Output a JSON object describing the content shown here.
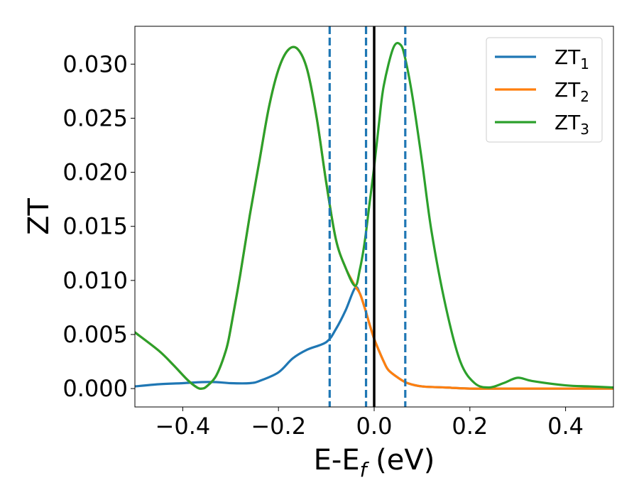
{
  "chart_data": {
    "type": "line",
    "title": "",
    "xlabel": "E-E",
    "xlabel_sub": "f",
    "xlabel_unit": " (eV)",
    "ylabel": "ZT",
    "xlim": [
      -0.5,
      0.5
    ],
    "ylim": [
      -0.0017,
      0.0335
    ],
    "xticks": [
      -0.4,
      -0.2,
      0.0,
      0.2,
      0.4
    ],
    "xtick_labels": [
      "−0.4",
      "−0.2",
      "0.0",
      "0.2",
      "0.4"
    ],
    "yticks": [
      0.0,
      0.005,
      0.01,
      0.015,
      0.02,
      0.025,
      0.03
    ],
    "ytick_labels": [
      "0.000",
      "0.005",
      "0.010",
      "0.015",
      "0.020",
      "0.025",
      "0.030"
    ],
    "grid": false,
    "legend": "top-right",
    "vlines": [
      {
        "x": -0.093,
        "style": "dashed",
        "color": "#1f77b4"
      },
      {
        "x": -0.017,
        "style": "dashed",
        "color": "#1f77b4"
      },
      {
        "x": 0.0,
        "style": "solid",
        "color": "#000000"
      },
      {
        "x": 0.065,
        "style": "dashed",
        "color": "#1f77b4"
      }
    ],
    "series": [
      {
        "name": "ZT",
        "subscript": "1",
        "color": "#1f77b4",
        "x": [
          -0.5,
          -0.45,
          -0.4,
          -0.36,
          -0.33,
          -0.3,
          -0.26,
          -0.24,
          -0.2,
          -0.17,
          -0.14,
          -0.1,
          -0.08,
          -0.06,
          -0.04,
          -0.03,
          -0.02,
          -0.01,
          0.0,
          0.01,
          0.02,
          0.03,
          0.05,
          0.07,
          0.1,
          0.15,
          0.2,
          0.3,
          0.4,
          0.5
        ],
        "y": [
          0.0002,
          0.0004,
          0.0005,
          0.0006,
          0.0006,
          0.0005,
          0.0005,
          0.0007,
          0.0015,
          0.0028,
          0.0036,
          0.0043,
          0.0055,
          0.0072,
          0.0093,
          0.0088,
          0.0075,
          0.006,
          0.0046,
          0.0035,
          0.0025,
          0.0017,
          0.001,
          0.0005,
          0.0002,
          0.0001,
          0.0,
          0.0,
          0.0,
          0.0
        ]
      },
      {
        "name": "ZT",
        "subscript": "2",
        "color": "#ff7f0e",
        "x": [
          -0.5,
          -0.45,
          -0.42,
          -0.39,
          -0.37,
          -0.36,
          -0.35,
          -0.33,
          -0.31,
          -0.3,
          -0.28,
          -0.26,
          -0.24,
          -0.22,
          -0.2,
          -0.18,
          -0.16,
          -0.14,
          -0.12,
          -0.1,
          -0.08,
          -0.06,
          -0.04,
          -0.03,
          -0.02,
          -0.01,
          0.0,
          0.01,
          0.02,
          0.03,
          0.05,
          0.07,
          0.1,
          0.15,
          0.2,
          0.3,
          0.4,
          0.5
        ],
        "y": [
          0.0052,
          0.0035,
          0.0022,
          0.0008,
          0.0001,
          0.0,
          0.0002,
          0.0012,
          0.0035,
          0.0055,
          0.0105,
          0.016,
          0.021,
          0.026,
          0.0295,
          0.0313,
          0.0314,
          0.0295,
          0.025,
          0.019,
          0.0138,
          0.0112,
          0.0095,
          0.0088,
          0.0075,
          0.006,
          0.0046,
          0.0035,
          0.0025,
          0.0017,
          0.001,
          0.0005,
          0.0002,
          0.0001,
          0.0,
          0.0,
          0.0,
          0.0
        ]
      },
      {
        "name": "ZT",
        "subscript": "3",
        "color": "#2ca02c",
        "x": [
          -0.5,
          -0.45,
          -0.42,
          -0.39,
          -0.37,
          -0.36,
          -0.35,
          -0.33,
          -0.31,
          -0.3,
          -0.28,
          -0.26,
          -0.24,
          -0.22,
          -0.2,
          -0.18,
          -0.16,
          -0.14,
          -0.12,
          -0.1,
          -0.08,
          -0.06,
          -0.04,
          -0.03,
          -0.02,
          -0.01,
          0.0,
          0.01,
          0.02,
          0.04,
          0.055,
          0.065,
          0.08,
          0.1,
          0.12,
          0.15,
          0.18,
          0.21,
          0.24,
          0.27,
          0.3,
          0.33,
          0.4,
          0.45,
          0.5
        ],
        "y": [
          0.0052,
          0.0035,
          0.0022,
          0.0008,
          0.0001,
          0.0,
          0.0002,
          0.0012,
          0.0035,
          0.0055,
          0.0105,
          0.016,
          0.021,
          0.026,
          0.0295,
          0.0313,
          0.0314,
          0.0295,
          0.025,
          0.019,
          0.0138,
          0.0112,
          0.0095,
          0.011,
          0.0135,
          0.017,
          0.0205,
          0.0245,
          0.028,
          0.0315,
          0.0318,
          0.0305,
          0.027,
          0.021,
          0.0145,
          0.0075,
          0.0025,
          0.0005,
          0.0001,
          0.0005,
          0.001,
          0.0007,
          0.0003,
          0.0002,
          0.0001
        ]
      }
    ]
  }
}
